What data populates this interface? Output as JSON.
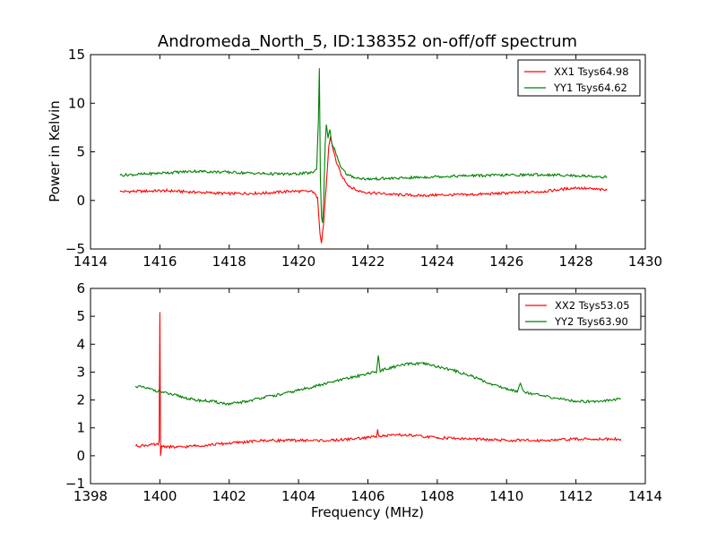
{
  "chart_data": [
    {
      "type": "line",
      "title": "Andromeda_North_5, ID:138352 on-off/off spectrum",
      "xlabel": "",
      "ylabel": "Power in Kelvin",
      "xlim": [
        1414,
        1430
      ],
      "ylim": [
        -5,
        15
      ],
      "xticks": [
        "1414",
        "1416",
        "1418",
        "1420",
        "1422",
        "1424",
        "1426",
        "1428",
        "1430"
      ],
      "yticks": [
        "−5",
        "0",
        "5",
        "10",
        "15"
      ],
      "legend_position": "top-right",
      "series": [
        {
          "name": "XX1 Tsys64.98",
          "color": "#ff0000",
          "points": [
            [
              1414.85,
              0.9
            ],
            [
              1415.5,
              0.95
            ],
            [
              1416.2,
              1.0
            ],
            [
              1417.0,
              0.85
            ],
            [
              1418.0,
              0.7
            ],
            [
              1419.0,
              0.75
            ],
            [
              1419.8,
              0.95
            ],
            [
              1420.4,
              0.9
            ],
            [
              1420.55,
              0.3
            ],
            [
              1420.62,
              -3.5
            ],
            [
              1420.66,
              -4.4
            ],
            [
              1420.72,
              -2.5
            ],
            [
              1420.8,
              1.5
            ],
            [
              1420.87,
              5.5
            ],
            [
              1420.92,
              6.5
            ],
            [
              1421.0,
              5.2
            ],
            [
              1421.1,
              3.8
            ],
            [
              1421.25,
              2.5
            ],
            [
              1421.45,
              1.5
            ],
            [
              1421.7,
              1.0
            ],
            [
              1422.0,
              0.8
            ],
            [
              1422.8,
              0.6
            ],
            [
              1423.5,
              0.5
            ],
            [
              1424.0,
              0.55
            ],
            [
              1425.0,
              0.6
            ],
            [
              1426.0,
              0.75
            ],
            [
              1427.0,
              0.9
            ],
            [
              1428.0,
              1.3
            ],
            [
              1428.9,
              1.05
            ]
          ]
        },
        {
          "name": "YY1 Tsys64.62",
          "color": "#008000",
          "points": [
            [
              1414.85,
              2.6
            ],
            [
              1415.5,
              2.7
            ],
            [
              1416.2,
              2.85
            ],
            [
              1417.0,
              3.0
            ],
            [
              1418.0,
              2.9
            ],
            [
              1419.0,
              2.75
            ],
            [
              1419.8,
              2.7
            ],
            [
              1420.4,
              2.85
            ],
            [
              1420.52,
              3.2
            ],
            [
              1420.57,
              8.0
            ],
            [
              1420.6,
              13.6
            ],
            [
              1420.63,
              2.0
            ],
            [
              1420.66,
              -1.5
            ],
            [
              1420.69,
              -2.3
            ],
            [
              1420.73,
              0.5
            ],
            [
              1420.77,
              6.0
            ],
            [
              1420.8,
              7.8
            ],
            [
              1420.85,
              6.4
            ],
            [
              1420.9,
              7.3
            ],
            [
              1420.95,
              6.0
            ],
            [
              1421.05,
              5.2
            ],
            [
              1421.2,
              3.6
            ],
            [
              1421.4,
              2.6
            ],
            [
              1421.7,
              2.3
            ],
            [
              1422.0,
              2.2
            ],
            [
              1423.0,
              2.3
            ],
            [
              1424.0,
              2.45
            ],
            [
              1425.0,
              2.55
            ],
            [
              1426.0,
              2.6
            ],
            [
              1427.0,
              2.65
            ],
            [
              1428.0,
              2.55
            ],
            [
              1428.9,
              2.4
            ]
          ]
        }
      ]
    },
    {
      "type": "line",
      "title": "",
      "xlabel": "Frequency (MHz)",
      "ylabel": "",
      "xlim": [
        1398,
        1414
      ],
      "ylim": [
        -1,
        6
      ],
      "xticks": [
        "1398",
        "1400",
        "1402",
        "1404",
        "1406",
        "1408",
        "1410",
        "1412",
        "1414"
      ],
      "yticks": [
        "−1",
        "0",
        "1",
        "2",
        "3",
        "4",
        "5",
        "6"
      ],
      "legend_position": "top-right",
      "series": [
        {
          "name": "XX2 Tsys53.05",
          "color": "#ff0000",
          "points": [
            [
              1399.3,
              0.35
            ],
            [
              1399.6,
              0.38
            ],
            [
              1399.95,
              0.4
            ],
            [
              1399.98,
              0.6
            ],
            [
              1400.0,
              5.15
            ],
            [
              1400.02,
              0.0
            ],
            [
              1400.05,
              0.35
            ],
            [
              1400.5,
              0.3
            ],
            [
              1401.0,
              0.35
            ],
            [
              1402.0,
              0.45
            ],
            [
              1403.0,
              0.55
            ],
            [
              1404.0,
              0.55
            ],
            [
              1405.0,
              0.55
            ],
            [
              1406.0,
              0.65
            ],
            [
              1406.25,
              0.7
            ],
            [
              1406.28,
              0.95
            ],
            [
              1406.32,
              0.7
            ],
            [
              1407.0,
              0.75
            ],
            [
              1408.0,
              0.65
            ],
            [
              1409.0,
              0.6
            ],
            [
              1410.0,
              0.55
            ],
            [
              1411.0,
              0.55
            ],
            [
              1412.0,
              0.6
            ],
            [
              1413.3,
              0.6
            ]
          ]
        },
        {
          "name": "YY2 Tsys63.90",
          "color": "#008000",
          "points": [
            [
              1399.3,
              2.5
            ],
            [
              1399.7,
              2.4
            ],
            [
              1400.0,
              2.3
            ],
            [
              1400.5,
              2.15
            ],
            [
              1401.0,
              2.0
            ],
            [
              1401.5,
              1.95
            ],
            [
              1402.0,
              1.85
            ],
            [
              1402.5,
              1.95
            ],
            [
              1403.0,
              2.1
            ],
            [
              1403.5,
              2.2
            ],
            [
              1404.0,
              2.35
            ],
            [
              1404.5,
              2.5
            ],
            [
              1405.0,
              2.65
            ],
            [
              1405.5,
              2.8
            ],
            [
              1406.0,
              2.95
            ],
            [
              1406.25,
              3.0
            ],
            [
              1406.3,
              3.6
            ],
            [
              1406.35,
              3.05
            ],
            [
              1406.8,
              3.2
            ],
            [
              1407.2,
              3.3
            ],
            [
              1407.6,
              3.3
            ],
            [
              1408.0,
              3.2
            ],
            [
              1408.5,
              3.05
            ],
            [
              1409.0,
              2.85
            ],
            [
              1409.5,
              2.6
            ],
            [
              1410.0,
              2.4
            ],
            [
              1410.3,
              2.3
            ],
            [
              1410.4,
              2.6
            ],
            [
              1410.5,
              2.3
            ],
            [
              1411.0,
              2.15
            ],
            [
              1411.5,
              2.05
            ],
            [
              1412.0,
              1.95
            ],
            [
              1412.5,
              1.95
            ],
            [
              1413.0,
              2.0
            ],
            [
              1413.3,
              2.05
            ]
          ]
        }
      ]
    }
  ]
}
